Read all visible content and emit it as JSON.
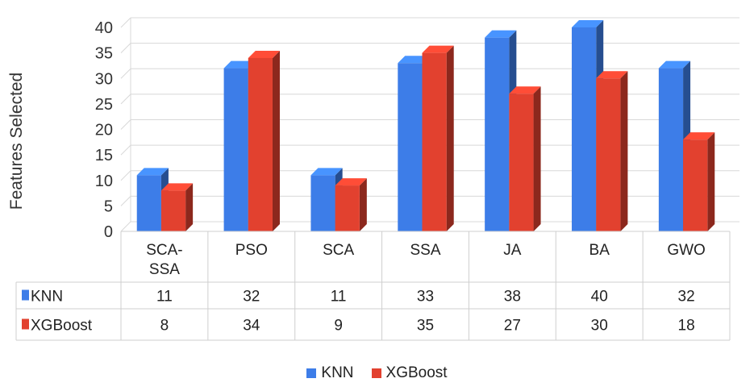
{
  "chart_data": {
    "type": "bar",
    "ylabel": "Features Selected",
    "ylim": [
      0,
      40
    ],
    "yticks": [
      "0",
      "5",
      "10",
      "15",
      "20",
      "25",
      "30",
      "35",
      "40"
    ],
    "categories": [
      "SCA-SSA",
      "PSO",
      "SCA",
      "SSA",
      "JA",
      "BA",
      "GWO"
    ],
    "category_lines": [
      [
        "SCA-",
        "SSA"
      ],
      [
        "PSO"
      ],
      [
        "SCA"
      ],
      [
        "SSA"
      ],
      [
        "JA"
      ],
      [
        "BA"
      ],
      [
        "GWO"
      ]
    ],
    "series": [
      {
        "name": "KNN",
        "values": [
          11,
          32,
          11,
          33,
          38,
          40,
          32
        ],
        "value_labels": [
          "11",
          "32",
          "11",
          "33",
          "38",
          "40",
          "32"
        ]
      },
      {
        "name": "XGBoost",
        "values": [
          8,
          34,
          9,
          35,
          27,
          30,
          18
        ],
        "value_labels": [
          "8",
          "34",
          "9",
          "35",
          "27",
          "30",
          "18"
        ]
      }
    ],
    "colors": {
      "KNN": "#3d7de8",
      "XGBoost": "#e2412f"
    },
    "data_table": true,
    "legend_position": "bottom",
    "grid": true
  }
}
